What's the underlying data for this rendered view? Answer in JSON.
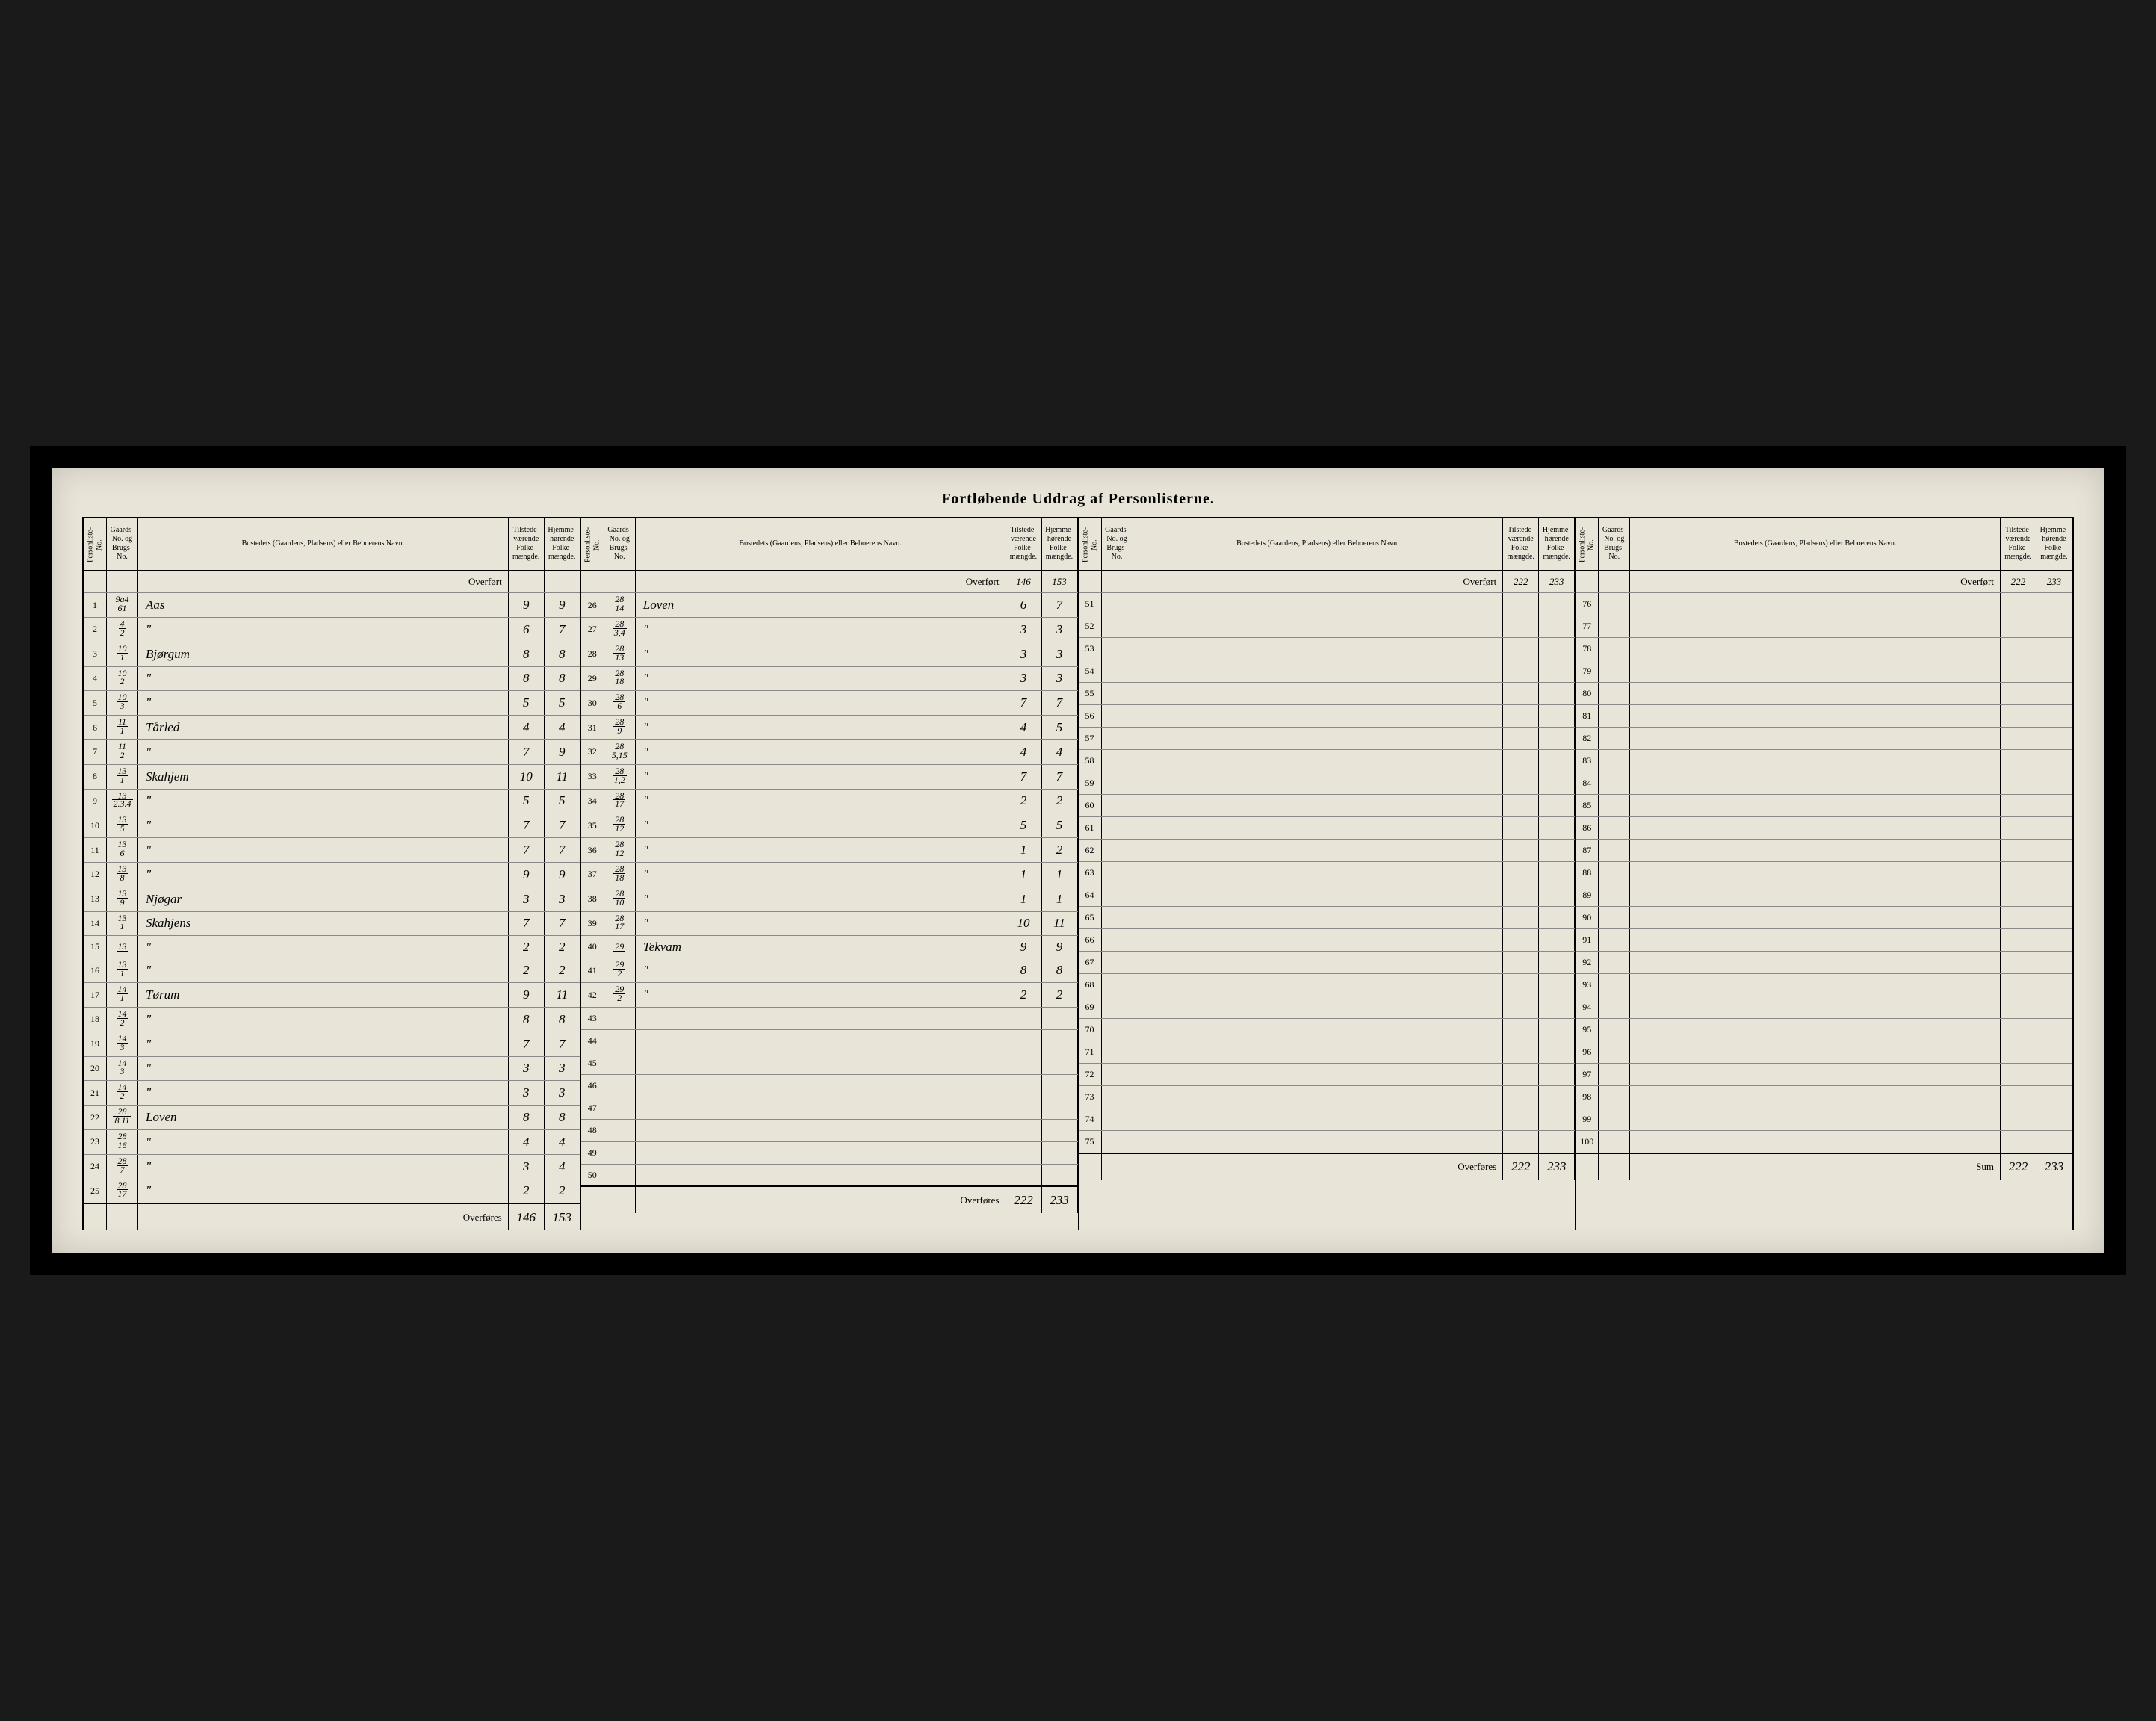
{
  "title": "Fortløbende Uddrag af Personlisterne.",
  "headers": {
    "personliste": "Personliste-No.",
    "gaard": "Gaards-No. og Brugs-No.",
    "bosted": "Bostedets (Gaardens, Pladsens) eller Beboerens Navn.",
    "tilstede": "Tilstede-værende Folke-mængde.",
    "hjemme": "Hjemme-hørende Folke-mængde."
  },
  "overfort_label": "Overført",
  "overfores_label": "Overføres",
  "sum_label": "Sum",
  "blocks": [
    {
      "carry_in": [
        "",
        ""
      ],
      "rows": [
        {
          "n": "1",
          "g": "9a4/61",
          "name": "Aas",
          "a": "9",
          "b": "9"
        },
        {
          "n": "2",
          "g": "4/2",
          "name": "\"",
          "a": "6",
          "b": "7"
        },
        {
          "n": "3",
          "g": "10/1",
          "name": "Bjørgum",
          "a": "8",
          "b": "8"
        },
        {
          "n": "4",
          "g": "10/2",
          "name": "\"",
          "a": "8",
          "b": "8"
        },
        {
          "n": "5",
          "g": "10/3",
          "name": "\"",
          "a": "5",
          "b": "5"
        },
        {
          "n": "6",
          "g": "11/1",
          "name": "Tårled",
          "a": "4",
          "b": "4"
        },
        {
          "n": "7",
          "g": "11/2",
          "name": "\"",
          "a": "7",
          "b": "9"
        },
        {
          "n": "8",
          "g": "13/1",
          "name": "Skahjem",
          "a": "10",
          "b": "11"
        },
        {
          "n": "9",
          "g": "13/2.3.4",
          "name": "\"",
          "a": "5",
          "b": "5"
        },
        {
          "n": "10",
          "g": "13/5",
          "name": "\"",
          "a": "7",
          "b": "7"
        },
        {
          "n": "11",
          "g": "13/6",
          "name": "\"",
          "a": "7",
          "b": "7"
        },
        {
          "n": "12",
          "g": "13/8",
          "name": "\"",
          "a": "9",
          "b": "9"
        },
        {
          "n": "13",
          "g": "13/9",
          "name": "Njøgar",
          "a": "3",
          "b": "3"
        },
        {
          "n": "14",
          "g": "13/1",
          "name": "Skahjens",
          "a": "7",
          "b": "7"
        },
        {
          "n": "15",
          "g": "13/",
          "name": "\"",
          "a": "2",
          "b": "2"
        },
        {
          "n": "16",
          "g": "13/1",
          "name": "\"",
          "a": "2",
          "b": "2"
        },
        {
          "n": "17",
          "g": "14/1",
          "name": "Tørum",
          "a": "9",
          "b": "11"
        },
        {
          "n": "18",
          "g": "14/2",
          "name": "\"",
          "a": "8",
          "b": "8"
        },
        {
          "n": "19",
          "g": "14/3",
          "name": "\"",
          "a": "7",
          "b": "7"
        },
        {
          "n": "20",
          "g": "14/3",
          "name": "\"",
          "a": "3",
          "b": "3"
        },
        {
          "n": "21",
          "g": "14/2",
          "name": "\"",
          "a": "3",
          "b": "3"
        },
        {
          "n": "22",
          "g": "28/8.11",
          "name": "Loven",
          "a": "8",
          "b": "8"
        },
        {
          "n": "23",
          "g": "28/16",
          "name": "\"",
          "a": "4",
          "b": "4"
        },
        {
          "n": "24",
          "g": "28/7",
          "name": "\"",
          "a": "3",
          "b": "4"
        },
        {
          "n": "25",
          "g": "28/17",
          "name": "\"",
          "a": "2",
          "b": "2"
        }
      ],
      "carry_out": [
        "146",
        "153"
      ]
    },
    {
      "carry_in": [
        "146",
        "153"
      ],
      "rows": [
        {
          "n": "26",
          "g": "28/14",
          "name": "Loven",
          "a": "6",
          "b": "7"
        },
        {
          "n": "27",
          "g": "28/3,4",
          "name": "\"",
          "a": "3",
          "b": "3"
        },
        {
          "n": "28",
          "g": "28/13",
          "name": "\"",
          "a": "3",
          "b": "3"
        },
        {
          "n": "29",
          "g": "28/18",
          "name": "\"",
          "a": "3",
          "b": "3"
        },
        {
          "n": "30",
          "g": "28/6",
          "name": "\"",
          "a": "7",
          "b": "7"
        },
        {
          "n": "31",
          "g": "28/9",
          "name": "\"",
          "a": "4",
          "b": "5"
        },
        {
          "n": "32",
          "g": "28/5,15",
          "name": "\"",
          "a": "4",
          "b": "4"
        },
        {
          "n": "33",
          "g": "28/1,2",
          "name": "\"",
          "a": "7",
          "b": "7"
        },
        {
          "n": "34",
          "g": "28/17",
          "name": "\"",
          "a": "2",
          "b": "2"
        },
        {
          "n": "35",
          "g": "28/12",
          "name": "\"",
          "a": "5",
          "b": "5"
        },
        {
          "n": "36",
          "g": "28/12",
          "name": "\"",
          "a": "1",
          "b": "2"
        },
        {
          "n": "37",
          "g": "28/18",
          "name": "\"",
          "a": "1",
          "b": "1"
        },
        {
          "n": "38",
          "g": "28/10",
          "name": "\"",
          "a": "1",
          "b": "1"
        },
        {
          "n": "39",
          "g": "28/17",
          "name": "\"",
          "a": "10",
          "b": "11"
        },
        {
          "n": "40",
          "g": "29/",
          "name": "Tekvam",
          "a": "9",
          "b": "9"
        },
        {
          "n": "41",
          "g": "29/2",
          "name": "\"",
          "a": "8",
          "b": "8"
        },
        {
          "n": "42",
          "g": "29/2",
          "name": "\"",
          "a": "2",
          "b": "2"
        },
        {
          "n": "43",
          "g": "",
          "name": "",
          "a": "",
          "b": ""
        },
        {
          "n": "44",
          "g": "",
          "name": "",
          "a": "",
          "b": ""
        },
        {
          "n": "45",
          "g": "",
          "name": "",
          "a": "",
          "b": ""
        },
        {
          "n": "46",
          "g": "",
          "name": "",
          "a": "",
          "b": ""
        },
        {
          "n": "47",
          "g": "",
          "name": "",
          "a": "",
          "b": ""
        },
        {
          "n": "48",
          "g": "",
          "name": "",
          "a": "",
          "b": ""
        },
        {
          "n": "49",
          "g": "",
          "name": "",
          "a": "",
          "b": ""
        },
        {
          "n": "50",
          "g": "",
          "name": "",
          "a": "",
          "b": ""
        }
      ],
      "carry_out": [
        "222",
        "233"
      ]
    },
    {
      "carry_in": [
        "222",
        "233"
      ],
      "rows": [
        {
          "n": "51",
          "g": "",
          "name": "",
          "a": "",
          "b": ""
        },
        {
          "n": "52",
          "g": "",
          "name": "",
          "a": "",
          "b": ""
        },
        {
          "n": "53",
          "g": "",
          "name": "",
          "a": "",
          "b": ""
        },
        {
          "n": "54",
          "g": "",
          "name": "",
          "a": "",
          "b": ""
        },
        {
          "n": "55",
          "g": "",
          "name": "",
          "a": "",
          "b": ""
        },
        {
          "n": "56",
          "g": "",
          "name": "",
          "a": "",
          "b": ""
        },
        {
          "n": "57",
          "g": "",
          "name": "",
          "a": "",
          "b": ""
        },
        {
          "n": "58",
          "g": "",
          "name": "",
          "a": "",
          "b": ""
        },
        {
          "n": "59",
          "g": "",
          "name": "",
          "a": "",
          "b": ""
        },
        {
          "n": "60",
          "g": "",
          "name": "",
          "a": "",
          "b": ""
        },
        {
          "n": "61",
          "g": "",
          "name": "",
          "a": "",
          "b": ""
        },
        {
          "n": "62",
          "g": "",
          "name": "",
          "a": "",
          "b": ""
        },
        {
          "n": "63",
          "g": "",
          "name": "",
          "a": "",
          "b": ""
        },
        {
          "n": "64",
          "g": "",
          "name": "",
          "a": "",
          "b": ""
        },
        {
          "n": "65",
          "g": "",
          "name": "",
          "a": "",
          "b": ""
        },
        {
          "n": "66",
          "g": "",
          "name": "",
          "a": "",
          "b": ""
        },
        {
          "n": "67",
          "g": "",
          "name": "",
          "a": "",
          "b": ""
        },
        {
          "n": "68",
          "g": "",
          "name": "",
          "a": "",
          "b": ""
        },
        {
          "n": "69",
          "g": "",
          "name": "",
          "a": "",
          "b": ""
        },
        {
          "n": "70",
          "g": "",
          "name": "",
          "a": "",
          "b": ""
        },
        {
          "n": "71",
          "g": "",
          "name": "",
          "a": "",
          "b": ""
        },
        {
          "n": "72",
          "g": "",
          "name": "",
          "a": "",
          "b": ""
        },
        {
          "n": "73",
          "g": "",
          "name": "",
          "a": "",
          "b": ""
        },
        {
          "n": "74",
          "g": "",
          "name": "",
          "a": "",
          "b": ""
        },
        {
          "n": "75",
          "g": "",
          "name": "",
          "a": "",
          "b": ""
        }
      ],
      "carry_out": [
        "222",
        "233"
      ]
    },
    {
      "carry_in": [
        "222",
        "233"
      ],
      "rows": [
        {
          "n": "76",
          "g": "",
          "name": "",
          "a": "",
          "b": ""
        },
        {
          "n": "77",
          "g": "",
          "name": "",
          "a": "",
          "b": ""
        },
        {
          "n": "78",
          "g": "",
          "name": "",
          "a": "",
          "b": ""
        },
        {
          "n": "79",
          "g": "",
          "name": "",
          "a": "",
          "b": ""
        },
        {
          "n": "80",
          "g": "",
          "name": "",
          "a": "",
          "b": ""
        },
        {
          "n": "81",
          "g": "",
          "name": "",
          "a": "",
          "b": ""
        },
        {
          "n": "82",
          "g": "",
          "name": "",
          "a": "",
          "b": ""
        },
        {
          "n": "83",
          "g": "",
          "name": "",
          "a": "",
          "b": ""
        },
        {
          "n": "84",
          "g": "",
          "name": "",
          "a": "",
          "b": ""
        },
        {
          "n": "85",
          "g": "",
          "name": "",
          "a": "",
          "b": ""
        },
        {
          "n": "86",
          "g": "",
          "name": "",
          "a": "",
          "b": ""
        },
        {
          "n": "87",
          "g": "",
          "name": "",
          "a": "",
          "b": ""
        },
        {
          "n": "88",
          "g": "",
          "name": "",
          "a": "",
          "b": ""
        },
        {
          "n": "89",
          "g": "",
          "name": "",
          "a": "",
          "b": ""
        },
        {
          "n": "90",
          "g": "",
          "name": "",
          "a": "",
          "b": ""
        },
        {
          "n": "91",
          "g": "",
          "name": "",
          "a": "",
          "b": ""
        },
        {
          "n": "92",
          "g": "",
          "name": "",
          "a": "",
          "b": ""
        },
        {
          "n": "93",
          "g": "",
          "name": "",
          "a": "",
          "b": ""
        },
        {
          "n": "94",
          "g": "",
          "name": "",
          "a": "",
          "b": ""
        },
        {
          "n": "95",
          "g": "",
          "name": "",
          "a": "",
          "b": ""
        },
        {
          "n": "96",
          "g": "",
          "name": "",
          "a": "",
          "b": ""
        },
        {
          "n": "97",
          "g": "",
          "name": "",
          "a": "",
          "b": ""
        },
        {
          "n": "98",
          "g": "",
          "name": "",
          "a": "",
          "b": ""
        },
        {
          "n": "99",
          "g": "",
          "name": "",
          "a": "",
          "b": ""
        },
        {
          "n": "100",
          "g": "",
          "name": "",
          "a": "",
          "b": ""
        }
      ],
      "carry_out": [
        "222",
        "233"
      ],
      "footer_label_override": "Sum"
    }
  ],
  "colors": {
    "paper": "#e8e4d8",
    "ink": "#000000",
    "rule": "#888888",
    "frame": "#1a1a1a"
  }
}
